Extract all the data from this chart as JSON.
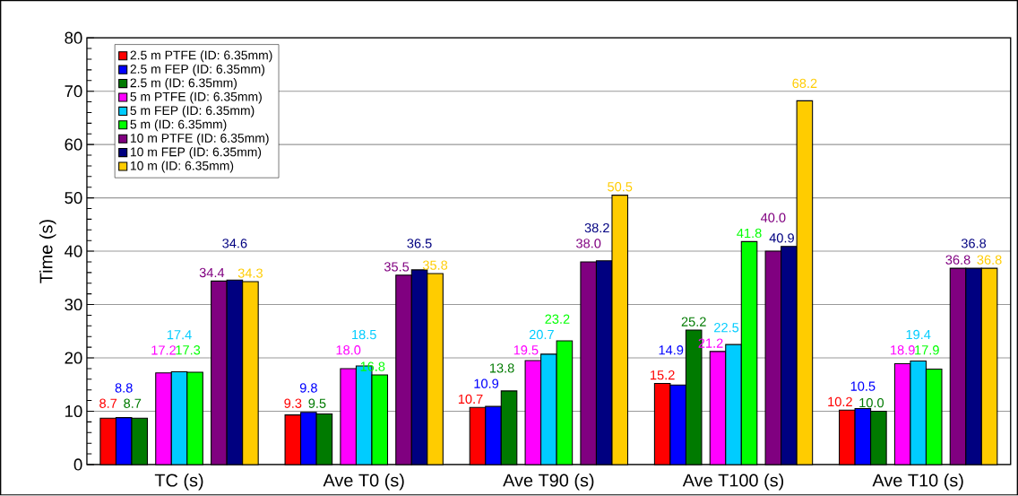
{
  "chart_data": {
    "type": "bar",
    "ylabel": "Time (s)",
    "categories": [
      "TC (s)",
      "Ave T0 (s)",
      "Ave T90 (s)",
      "Ave T100 (s)",
      "Ave T10 (s)"
    ],
    "series": [
      {
        "name": "2.5 m PTFE (ID: 6.35mm)",
        "color": "#ff0000",
        "values": [
          8.7,
          9.3,
          10.7,
          15.2,
          10.2
        ],
        "value_labels": [
          "8.7",
          "9.3",
          "10.7",
          "15.2",
          "10.2"
        ]
      },
      {
        "name": "2.5 m FEP (ID: 6.35mm)",
        "color": "#0000ff",
        "values": [
          8.8,
          9.8,
          10.9,
          14.9,
          10.5
        ],
        "value_labels": [
          "8.8",
          "9.8",
          "10.9",
          "14.9",
          "10.5"
        ]
      },
      {
        "name": "2.5 m (ID: 6.35mm)",
        "color": "#007a00",
        "values": [
          8.7,
          9.5,
          13.8,
          25.2,
          10.0
        ],
        "value_labels": [
          "8.7",
          "9.5",
          "13.8",
          "25.2",
          "10.0"
        ]
      },
      {
        "name": "5 m PTFE (ID: 6.35mm)",
        "color": "#ff00ff",
        "values": [
          17.2,
          18.0,
          19.5,
          21.2,
          18.9
        ],
        "value_labels": [
          "17.2",
          "18.0",
          "19.5",
          "21.2",
          "18.9"
        ]
      },
      {
        "name": "5 m FEP (ID: 6.35mm)",
        "color": "#00ccff",
        "values": [
          17.4,
          18.5,
          20.7,
          22.5,
          19.4
        ],
        "value_labels": [
          "17.4",
          "18.5",
          "20.7",
          "22.5",
          "19.4"
        ]
      },
      {
        "name": "5 m (ID: 6.35mm)",
        "color": "#00ff00",
        "values": [
          17.3,
          16.8,
          23.2,
          41.8,
          17.9
        ],
        "value_labels": [
          "17.3",
          "16.8",
          "23.2",
          "41.8",
          "17.9"
        ]
      },
      {
        "name": "10 m PTFE (ID: 6.35mm)",
        "color": "#800080",
        "values": [
          34.4,
          35.5,
          38.0,
          40.0,
          36.8
        ],
        "value_labels": [
          "34.4",
          "35.5",
          "38.0",
          "40.0",
          "36.8"
        ]
      },
      {
        "name": "10 m FEP (ID: 6.35mm)",
        "color": "#000080",
        "values": [
          34.6,
          36.5,
          38.2,
          40.9,
          36.8
        ],
        "value_labels": [
          "34.6",
          "36.5",
          "38.2",
          "40.9",
          "36.8"
        ]
      },
      {
        "name": "10 m (ID: 6.35mm)",
        "color": "#ffcc00",
        "values": [
          34.3,
          35.8,
          50.5,
          68.2,
          36.8
        ],
        "value_labels": [
          "34.3",
          "35.8",
          "50.5",
          "68.2",
          "36.8"
        ]
      }
    ],
    "ylim": [
      0,
      80
    ],
    "yticks": [
      0,
      10,
      20,
      30,
      40,
      50,
      60,
      70,
      80
    ],
    "grid": "y",
    "legend": "top left"
  }
}
